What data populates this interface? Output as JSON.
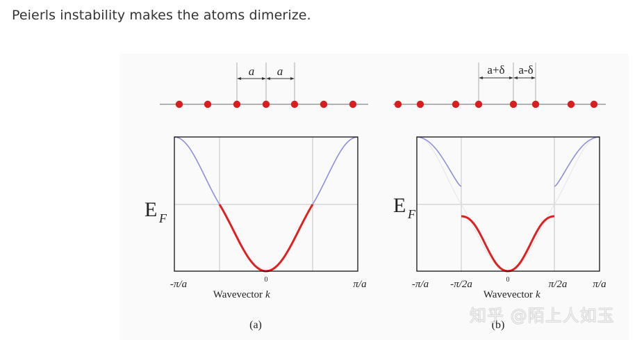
{
  "heading": "Peierls instability makes the atoms dimerize.",
  "panel_a": {
    "spacing_labels": [
      "a",
      "a"
    ],
    "energy_label": "E",
    "energy_sub": "F",
    "tick_left": "-π/a",
    "tick_zero": "0",
    "tick_right": "π/a",
    "xlabel": "Wavevector",
    "xlabel_var": "k",
    "caption": "(a)"
  },
  "panel_b": {
    "spacing_labels": [
      "a+δ",
      "a-δ"
    ],
    "energy_label": "E",
    "energy_sub": "F",
    "tick_left": "-π/a",
    "tick_left_half": "-π/2a",
    "tick_zero": "0",
    "tick_right_half": "π/2a",
    "tick_right": "π/a",
    "xlabel": "Wavevector",
    "xlabel_var": "k",
    "caption": "(b)"
  },
  "watermark": "知乎 @陌上人如玉",
  "colors": {
    "atom": "#d81e1e",
    "filled_band": "#e02020",
    "empty_band": "#8e8ee0",
    "axis": "#111111",
    "grid": "#bbbbbb"
  }
}
